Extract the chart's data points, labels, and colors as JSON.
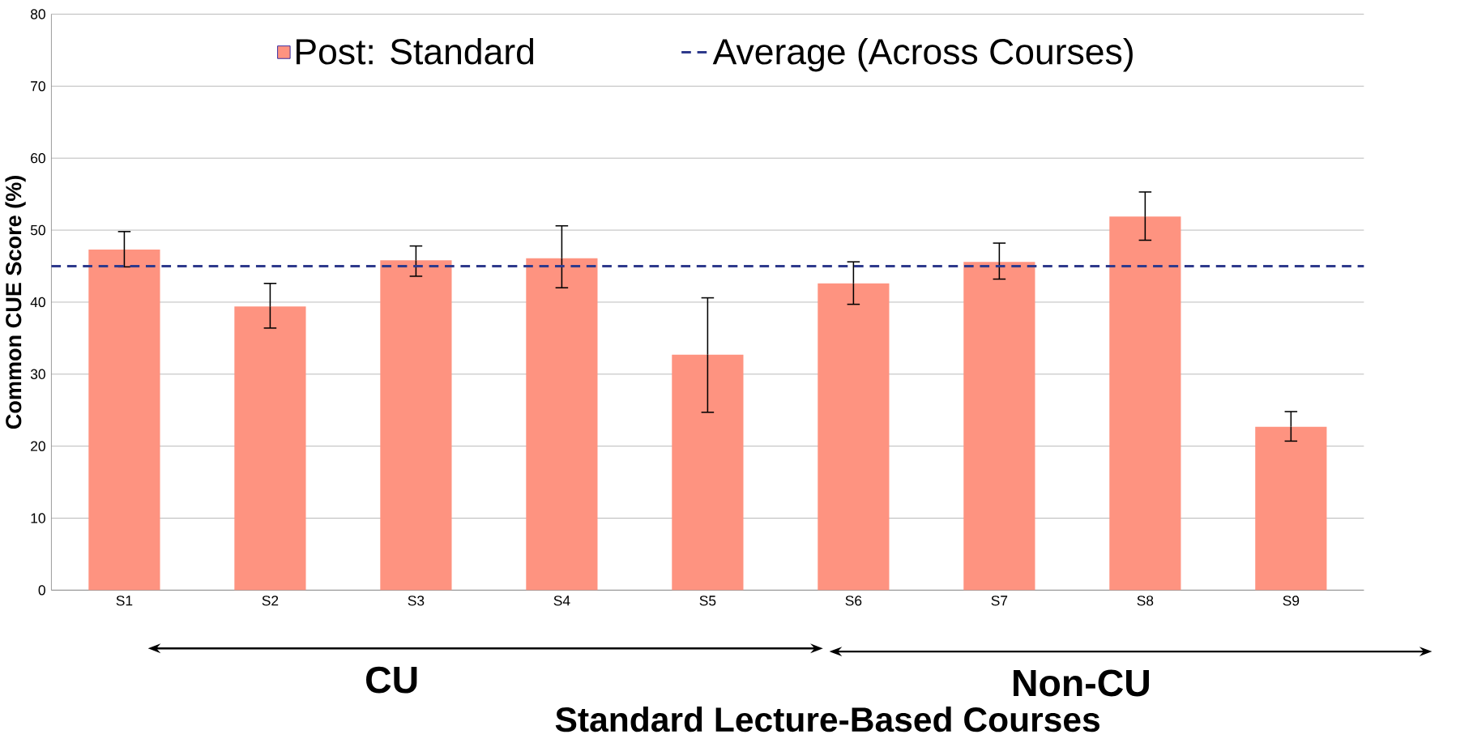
{
  "chart_data": {
    "type": "bar",
    "xlabel": "Standard Lecture-Based Courses",
    "ylabel": "Common CUE Score (%)",
    "categories": [
      "S1",
      "S2",
      "S3",
      "S4",
      "S5",
      "S6",
      "S7",
      "S8",
      "S9"
    ],
    "series": [
      {
        "name": "Post: Standard",
        "color": "#fe9380",
        "values": [
          47.3,
          39.4,
          45.8,
          46.1,
          32.7,
          42.6,
          45.6,
          51.9,
          22.7
        ],
        "errors": [
          [
            44.9,
            49.8
          ],
          [
            36.4,
            42.6
          ],
          [
            43.6,
            47.8
          ],
          [
            42.0,
            50.6
          ],
          [
            24.7,
            40.6
          ],
          [
            39.7,
            45.6
          ],
          [
            43.2,
            48.2
          ],
          [
            48.6,
            55.3
          ],
          [
            20.7,
            24.8
          ]
        ]
      }
    ],
    "ylim": [
      0,
      80
    ],
    "yticks": [
      0,
      10,
      20,
      30,
      40,
      50,
      60,
      70,
      80
    ],
    "grid": "y",
    "legend": "top",
    "marker": "square",
    "ref_lines": [
      {
        "axis": "y",
        "value": 45.0,
        "label": "Average (Across Courses)",
        "color": "#2e3a8c",
        "line_style": "dashed"
      }
    ],
    "annotations": [
      "CU",
      "Non-CU"
    ]
  }
}
